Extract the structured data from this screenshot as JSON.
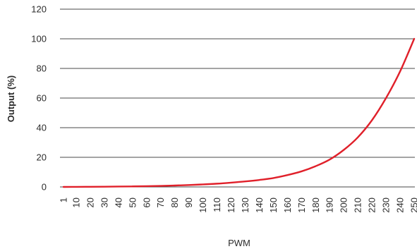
{
  "chart_data": {
    "type": "line",
    "xlabel": "PWM",
    "ylabel": "Output (%)",
    "ylim": [
      0,
      120
    ],
    "yticks": [
      0,
      20,
      40,
      60,
      80,
      100,
      120
    ],
    "xticks": [
      1,
      10,
      20,
      30,
      40,
      50,
      60,
      70,
      80,
      90,
      100,
      110,
      120,
      130,
      140,
      150,
      160,
      170,
      180,
      190,
      200,
      210,
      220,
      230,
      240,
      250
    ],
    "grid": "horizontal",
    "series": [
      {
        "color": "#e0202a",
        "x": [
          1,
          10,
          20,
          30,
          40,
          50,
          60,
          70,
          80,
          90,
          100,
          110,
          120,
          130,
          140,
          150,
          160,
          170,
          180,
          190,
          200,
          210,
          220,
          230,
          240,
          250
        ],
        "y": [
          0,
          0.05,
          0.1,
          0.15,
          0.25,
          0.35,
          0.5,
          0.7,
          0.95,
          1.3,
          1.7,
          2.2,
          2.9,
          3.7,
          4.7,
          6.0,
          8.0,
          10.5,
          14.0,
          18.5,
          25.0,
          33.5,
          45.0,
          60.0,
          78.0,
          100.0
        ]
      }
    ]
  }
}
